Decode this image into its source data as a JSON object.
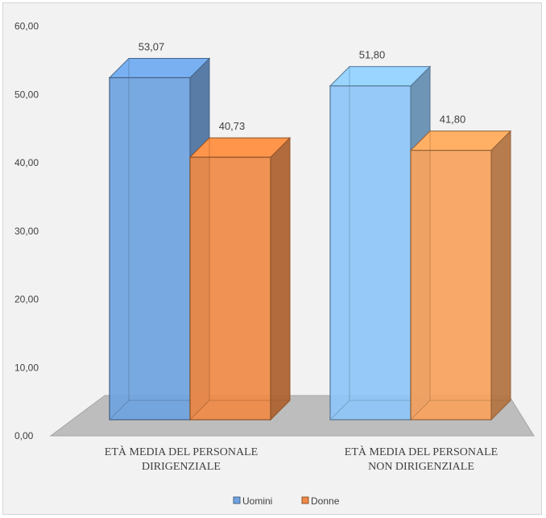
{
  "chart_data": {
    "type": "bar",
    "categories": [
      [
        "ETÀ MEDIA DEL PERSONALE",
        "DIRIGENZIALE"
      ],
      [
        "ETÀ MEDIA DEL PERSONALE",
        "NON DIRIGENZIALE"
      ]
    ],
    "series": [
      {
        "name": "Uomini",
        "values": [
          53.07,
          51.8
        ],
        "labels": [
          "53,07",
          "51,80"
        ]
      },
      {
        "name": "Donne",
        "values": [
          40.73,
          41.8
        ],
        "labels": [
          "40,73",
          "41,80"
        ]
      }
    ],
    "ylim": [
      0,
      60
    ],
    "yticks": [
      "0,00",
      "10,00",
      "20,00",
      "30,00",
      "40,00",
      "50,00",
      "60,00"
    ],
    "legend_position": "bottom",
    "three_d": true,
    "colors": {
      "Uomini_1": "#6fa3e0",
      "Uomini_2": "#8ec5f7",
      "Donne_1": "#f08a45",
      "Donne_2": "#f9a35d",
      "floor": "#bdbdbd"
    }
  }
}
